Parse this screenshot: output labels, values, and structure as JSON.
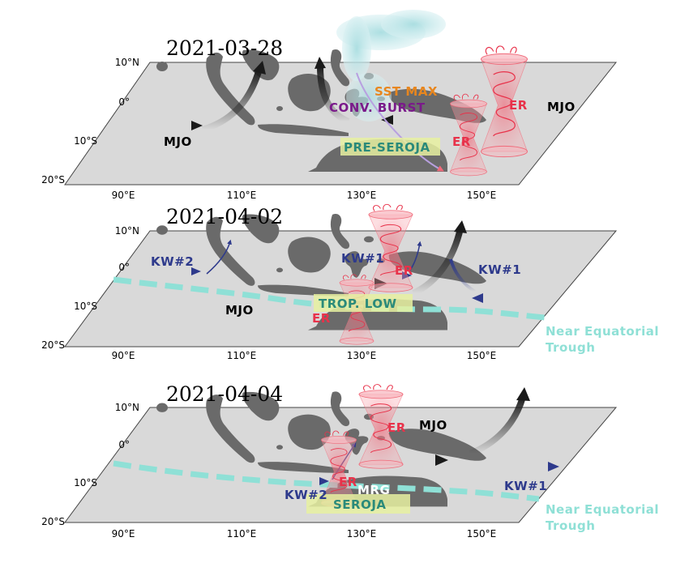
{
  "panels": [
    {
      "date": "2021-03-28",
      "lat_ticks": [
        "10°N",
        "0°",
        "10°S",
        "20°S"
      ],
      "lon_ticks": [
        "90°E",
        "110°E",
        "130°E",
        "150°E"
      ],
      "labels": {
        "mjo_left": "MJO",
        "mjo_right": "MJO",
        "sst_max": "SST MAX",
        "conv_burst": "CONV. BURST",
        "pre_seroja": "PRE-SEROJA",
        "er_upper": "ER",
        "er_lower": "ER"
      }
    },
    {
      "date": "2021-04-02",
      "lat_ticks": [
        "10°N",
        "0°",
        "10°S",
        "20°S"
      ],
      "lon_ticks": [
        "90°E",
        "110°E",
        "130°E",
        "150°E"
      ],
      "labels": {
        "kw2": "KW#2",
        "kw1_center": "KW#1",
        "kw1_right": "KW#1",
        "er_upper": "ER",
        "er_lower": "ER",
        "mjo": "MJO",
        "trop_low": "TROP. LOW",
        "trough_1": "Near Equatorial",
        "trough_2": "Trough"
      }
    },
    {
      "date": "2021-04-04",
      "lat_ticks": [
        "10°N",
        "0°",
        "10°S",
        "20°S"
      ],
      "lon_ticks": [
        "90°E",
        "110°E",
        "130°E",
        "150°E"
      ],
      "labels": {
        "er_upper": "ER",
        "er_lower": "ER",
        "mjo": "MJO",
        "mrg": "MRG",
        "kw2": "KW#2",
        "seroja": "SEROJA",
        "kw1": "KW#1",
        "trough_1": "Near Equatorial",
        "trough_2": "Trough"
      }
    }
  ],
  "colors": {
    "map_fill": "#d9d9d9",
    "land": "#6a6a6a",
    "mjo_arrow": "#1a1a1a",
    "kelvin_arrow": "#2e3a8c",
    "er_vortex": "#f06a7a",
    "trough": "#8fe0d6",
    "sst_text": "#e8861e",
    "conv_text": "#7a1a8a",
    "teal_text": "#2a8a7a",
    "er_text": "#e8324a",
    "label_box": "#e6f0a0"
  }
}
